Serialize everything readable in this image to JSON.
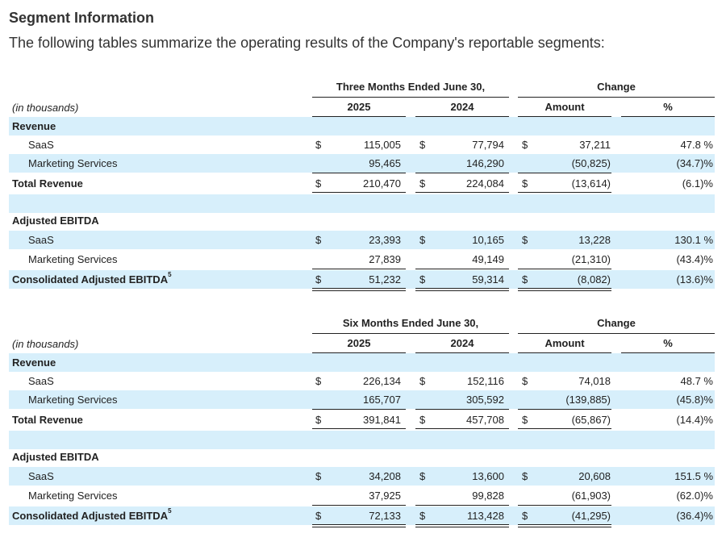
{
  "heading": "Segment Information",
  "intro": "The following tables summarize the operating results of the Company's reportable segments:",
  "tables": [
    {
      "period_header": "Three Months Ended June 30,",
      "change_header": "Change",
      "units_label": "(in thousands)",
      "col_2025": "2025",
      "col_2024": "2024",
      "col_amount": "Amount",
      "col_pct": "%",
      "revenue_label": "Revenue",
      "rev_saas": {
        "label": "SaaS",
        "d1": "$",
        "v2025": "115,005",
        "d2": "$",
        "v2024": "77,794",
        "d3": "$",
        "amount": "37,211",
        "pct": "47.8 %"
      },
      "rev_marketing": {
        "label": "Marketing Services",
        "v2025": "95,465",
        "v2024": "146,290",
        "amount": "(50,825)",
        "pct": "(34.7)%"
      },
      "rev_total": {
        "label": "Total Revenue",
        "d1": "$",
        "v2025": "210,470",
        "d2": "$",
        "v2024": "224,084",
        "d3": "$",
        "amount": "(13,614)",
        "pct": "(6.1)%"
      },
      "ebitda_label": "Adjusted EBITDA",
      "eb_saas": {
        "label": "SaaS",
        "d1": "$",
        "v2025": "23,393",
        "d2": "$",
        "v2024": "10,165",
        "d3": "$",
        "amount": "13,228",
        "pct": "130.1 %"
      },
      "eb_marketing": {
        "label": "Marketing Services",
        "v2025": "27,839",
        "v2024": "49,149",
        "amount": "(21,310)",
        "pct": "(43.4)%"
      },
      "eb_total": {
        "label": "Consolidated Adjusted EBITDA",
        "sup": "5",
        "d1": "$",
        "v2025": "51,232",
        "d2": "$",
        "v2024": "59,314",
        "d3": "$",
        "amount": "(8,082)",
        "pct": "(13.6)%"
      }
    },
    {
      "period_header": "Six Months Ended June 30,",
      "change_header": "Change",
      "units_label": "(in thousands)",
      "col_2025": "2025",
      "col_2024": "2024",
      "col_amount": "Amount",
      "col_pct": "%",
      "revenue_label": "Revenue",
      "rev_saas": {
        "label": "SaaS",
        "d1": "$",
        "v2025": "226,134",
        "d2": "$",
        "v2024": "152,116",
        "d3": "$",
        "amount": "74,018",
        "pct": "48.7 %"
      },
      "rev_marketing": {
        "label": "Marketing Services",
        "v2025": "165,707",
        "v2024": "305,592",
        "amount": "(139,885)",
        "pct": "(45.8)%"
      },
      "rev_total": {
        "label": "Total Revenue",
        "d1": "$",
        "v2025": "391,841",
        "d2": "$",
        "v2024": "457,708",
        "d3": "$",
        "amount": "(65,867)",
        "pct": "(14.4)%"
      },
      "ebitda_label": "Adjusted EBITDA",
      "eb_saas": {
        "label": "SaaS",
        "d1": "$",
        "v2025": "34,208",
        "d2": "$",
        "v2024": "13,600",
        "d3": "$",
        "amount": "20,608",
        "pct": "151.5 %"
      },
      "eb_marketing": {
        "label": "Marketing Services",
        "v2025": "37,925",
        "v2024": "99,828",
        "amount": "(61,903)",
        "pct": "(62.0)%"
      },
      "eb_total": {
        "label": "Consolidated Adjusted EBITDA",
        "sup": "5",
        "d1": "$",
        "v2025": "72,133",
        "d2": "$",
        "v2024": "113,428",
        "d3": "$",
        "amount": "(41,295)",
        "pct": "(36.4)%"
      }
    }
  ]
}
